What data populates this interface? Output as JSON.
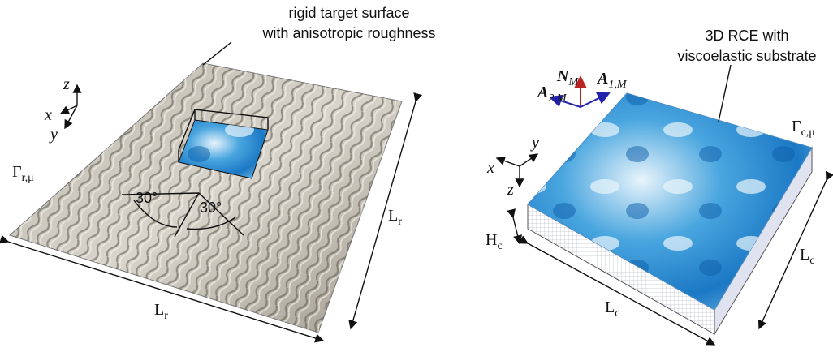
{
  "left": {
    "title_line1": "rigid target surface",
    "title_line2": "with anisotropic roughness",
    "axes": {
      "z": "z",
      "x": "x",
      "y": "y"
    },
    "boundary": {
      "symbol": "Γ",
      "sub": "r,μ"
    },
    "angle_left": "30°",
    "angle_right": "30°",
    "length_bottom": {
      "symbol": "L",
      "sub": "r"
    },
    "length_right": {
      "symbol": "L",
      "sub": "r"
    }
  },
  "right": {
    "title_line1": "3D RCE with",
    "title_line2": "viscoelastic substrate",
    "normal": {
      "symbol": "N",
      "sub": "M"
    },
    "a1": {
      "symbol": "A",
      "sub": "1,M"
    },
    "a2": {
      "symbol": "A",
      "sub": "2,M"
    },
    "axes": {
      "y": "y",
      "x": "x",
      "z": "z"
    },
    "boundary": {
      "symbol": "Γ",
      "sub": "c,μ"
    },
    "height": {
      "symbol": "H",
      "sub": "c"
    },
    "length_bottom": {
      "symbol": "L",
      "sub": "c"
    },
    "length_right": {
      "symbol": "L",
      "sub": "c"
    }
  }
}
